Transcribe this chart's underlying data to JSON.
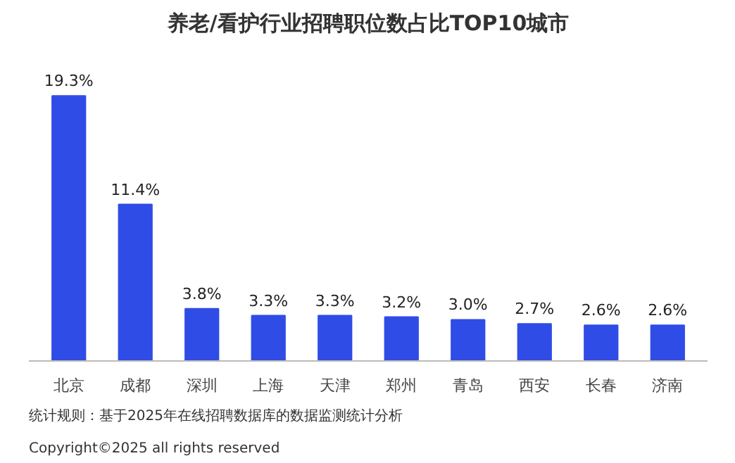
{
  "chart_data": {
    "type": "bar",
    "title": "养老/看护行业招聘职位数占比TOP10城市",
    "categories": [
      "北京",
      "成都",
      "深圳",
      "上海",
      "天津",
      "郑州",
      "青岛",
      "西安",
      "长春",
      "济南"
    ],
    "values": [
      19.3,
      11.4,
      3.8,
      3.3,
      3.3,
      3.2,
      3.0,
      2.7,
      2.6,
      2.6
    ],
    "value_labels": [
      "19.3%",
      "11.4%",
      "3.8%",
      "3.3%",
      "3.3%",
      "3.2%",
      "3.0%",
      "2.7%",
      "2.6%",
      "2.6%"
    ],
    "color": "#2f4de6",
    "annotations": [
      "统计规则：基于2025年在线招聘数据库的数据监测统计分析",
      "Copyright©2025 all rights reserved"
    ]
  }
}
